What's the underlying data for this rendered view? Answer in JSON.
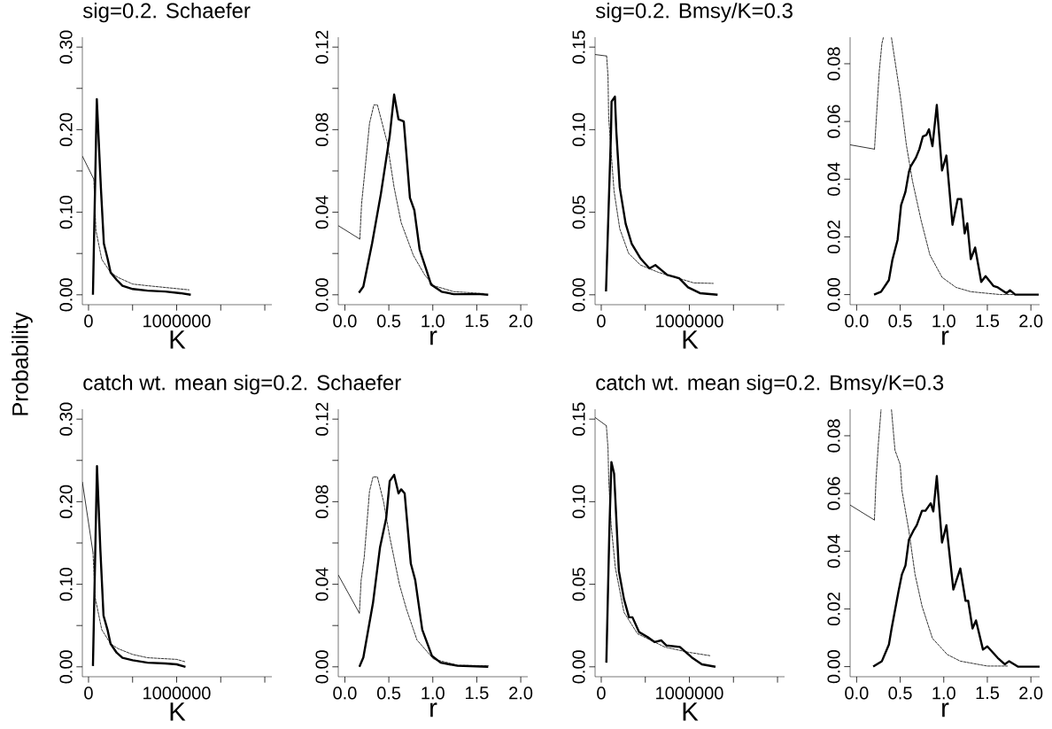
{
  "chart_data": [
    {
      "type": "line",
      "title": "sig=0.2. Schaefer",
      "xlabel": "K",
      "ylabel": "Probability",
      "xlim": [
        -70000,
        2080000
      ],
      "ylim": [
        -0.012,
        0.312
      ],
      "xticks": [
        0,
        {
          "value": 500000,
          "label": null
        },
        1000000,
        {
          "value": 1500000,
          "label": null
        },
        {
          "value": 2000000,
          "label": null
        }
      ],
      "yticks": [
        {
          "value": 0,
          "label": "0.00"
        },
        {
          "value": 0.05,
          "label": null
        },
        {
          "value": 0.1,
          "label": "0.10"
        },
        {
          "value": 0.15,
          "label": null
        },
        {
          "value": 0.2,
          "label": "0.20"
        },
        {
          "value": 0.25,
          "label": null
        },
        {
          "value": 0.3,
          "label": "0.30"
        }
      ],
      "series": [
        {
          "color": "#000000",
          "line_style": "solid",
          "x": [
            50000,
            94000,
            140000,
            174000,
            218000,
            251000,
            320000,
            385000,
            502000,
            670000,
            870000,
            1040000,
            1160000
          ],
          "values": [
            0.0,
            0.237,
            0.13,
            0.062,
            0.043,
            0.027,
            0.018,
            0.011,
            0.007,
            0.005,
            0.004,
            0.002,
            0.0
          ]
        },
        {
          "color": "#000000",
          "line_style": "dashed",
          "x": [
            60000,
            84000,
            150000,
            250000,
            335000,
            500000,
            670000,
            1140000
          ],
          "values": [
            0.14,
            0.078,
            0.043,
            0.027,
            0.021,
            0.013,
            0.011,
            0.006
          ]
        },
        {
          "color": "#000000",
          "line_style": "solid",
          "x": [
            -70000,
            60000
          ],
          "values": [
            0.168,
            0.14
          ]
        }
      ]
    },
    {
      "type": "line",
      "xlabel": "r",
      "xlim": [
        -0.075,
        2.08
      ],
      "ylim": [
        -0.0048,
        0.1248
      ],
      "xticks": [
        {
          "value": 0,
          "label": "0.0"
        },
        {
          "value": 0.5,
          "label": "0.5"
        },
        {
          "value": 1,
          "label": "1.0"
        },
        {
          "value": 1.5,
          "label": "1.5"
        },
        {
          "value": 2,
          "label": "2.0"
        }
      ],
      "yticks": [
        {
          "value": 0,
          "label": "0.00"
        },
        {
          "value": 0.02,
          "label": null
        },
        {
          "value": 0.04,
          "label": "0.04"
        },
        {
          "value": 0.06,
          "label": null
        },
        {
          "value": 0.08,
          "label": "0.08"
        },
        {
          "value": 0.1,
          "label": null
        },
        {
          "value": 0.12,
          "label": "0.12"
        }
      ],
      "series": [
        {
          "color": "#000000",
          "line_style": "solid",
          "x": [
            0.16,
            0.21,
            0.31,
            0.41,
            0.51,
            0.56,
            0.61,
            0.67,
            0.74,
            0.79,
            0.85,
            0.92,
            0.98,
            1.1,
            1.24,
            1.54,
            1.63
          ],
          "values": [
            0.001,
            0.004,
            0.025,
            0.049,
            0.077,
            0.097,
            0.085,
            0.084,
            0.047,
            0.041,
            0.022,
            0.013,
            0.005,
            0.0015,
            0.0003,
            0.0003,
            0.0
          ]
        },
        {
          "color": "#000000",
          "line_style": "dashed",
          "x": [
            0.17,
            0.19,
            0.23,
            0.28,
            0.33,
            0.37,
            0.48,
            0.56,
            0.64,
            0.78,
            0.91,
            1.01,
            1.24,
            1.58
          ],
          "values": [
            0.027,
            0.044,
            0.061,
            0.083,
            0.092,
            0.092,
            0.074,
            0.052,
            0.035,
            0.019,
            0.0095,
            0.0044,
            0.0015,
            0.0006
          ]
        },
        {
          "color": "#000000",
          "line_style": "solid",
          "x": [
            -0.075,
            0.17
          ],
          "values": [
            0.0335,
            0.027
          ]
        }
      ]
    },
    {
      "type": "line",
      "title": "sig=0.2. Bmsy/K=0.3",
      "xlabel": "K",
      "xlim": [
        -70000,
        2080000
      ],
      "ylim": [
        -0.006,
        0.156
      ],
      "xticks": [
        0,
        {
          "value": 500000,
          "label": null
        },
        1000000,
        {
          "value": 1500000,
          "label": null
        },
        {
          "value": 2000000,
          "label": null
        }
      ],
      "yticks": [
        {
          "value": 0,
          "label": "0.00"
        },
        {
          "value": 0.05,
          "label": "0.05"
        },
        {
          "value": 0.1,
          "label": "0.10"
        },
        {
          "value": 0.15,
          "label": "0.15"
        }
      ],
      "series": [
        {
          "color": "#000000",
          "line_style": "solid",
          "x": [
            54000,
            111000,
            117000,
            155000,
            171000,
            210000,
            277000,
            345000,
            446000,
            547000,
            614000,
            682000,
            749000,
            884000,
            985000,
            1120000,
            1320000
          ],
          "values": [
            0.002,
            0.099,
            0.117,
            0.12,
            0.099,
            0.065,
            0.043,
            0.031,
            0.022,
            0.016,
            0.018,
            0.015,
            0.012,
            0.01,
            0.0045,
            0.001,
            0.0
          ]
        },
        {
          "color": "#000000",
          "line_style": "dashed",
          "x": [
            61000,
            77000,
            84000,
            111000,
            145000,
            210000,
            311000,
            446000,
            648000,
            884000,
            1050000,
            1270000
          ],
          "values": [
            0.1446,
            0.132,
            0.108,
            0.087,
            0.063,
            0.04,
            0.025,
            0.018,
            0.0136,
            0.0099,
            0.0072,
            0.0069
          ]
        },
        {
          "color": "#000000",
          "line_style": "solid",
          "x": [
            -70000,
            61000
          ],
          "values": [
            0.1455,
            0.1446
          ]
        }
      ]
    },
    {
      "type": "line",
      "xlabel": "r",
      "xlim": [
        -0.075,
        2.1
      ],
      "ylim": [
        -0.0035,
        0.0892
      ],
      "xticks": [
        {
          "value": 0,
          "label": "0.0"
        },
        {
          "value": 0.5,
          "label": "0.5"
        },
        {
          "value": 1,
          "label": "1.0"
        },
        {
          "value": 1.5,
          "label": "1.5"
        },
        {
          "value": 2,
          "label": "2.0"
        }
      ],
      "yticks": [
        {
          "value": 0,
          "label": "0.00"
        },
        {
          "value": 0.02,
          "label": "0.02"
        },
        {
          "value": 0.04,
          "label": "0.04"
        },
        {
          "value": 0.06,
          "label": "0.06"
        },
        {
          "value": 0.08,
          "label": "0.08"
        }
      ],
      "series": [
        {
          "color": "#000000",
          "line_style": "solid",
          "x": [
            0.2,
            0.28,
            0.37,
            0.41,
            0.47,
            0.51,
            0.56,
            0.6,
            0.62,
            0.68,
            0.72,
            0.76,
            0.8,
            0.83,
            0.87,
            0.92,
            0.98,
            1.03,
            1.1,
            1.16,
            1.2,
            1.24,
            1.27,
            1.31,
            1.36,
            1.43,
            1.48,
            1.57,
            1.62,
            1.72,
            1.76,
            1.82,
            2.09
          ],
          "values": [
            0.0,
            0.001,
            0.005,
            0.012,
            0.019,
            0.031,
            0.0356,
            0.0425,
            0.0444,
            0.0474,
            0.0504,
            0.0548,
            0.0553,
            0.0573,
            0.0514,
            0.0657,
            0.043,
            0.0482,
            0.0242,
            0.0331,
            0.0331,
            0.0212,
            0.0247,
            0.0123,
            0.0163,
            0.0044,
            0.0064,
            0.003,
            0.0025,
            0.0005,
            0.0015,
            0.0,
            0.0
          ]
        },
        {
          "color": "#000000",
          "line_style": "dashed",
          "x": [
            0.205,
            0.23,
            0.26,
            0.29,
            0.306,
            0.35,
            0.4,
            0.5,
            0.57,
            0.64,
            0.74,
            0.84,
            0.98,
            1.14,
            1.31,
            1.65,
            2.09
          ],
          "values": [
            0.0504,
            0.063,
            0.0775,
            0.087,
            0.089,
            null,
            0.089,
            0.069,
            0.052,
            0.0395,
            0.0257,
            0.0138,
            0.006,
            0.0025,
            0.001,
            0.0,
            0.0
          ]
        },
        {
          "color": "#000000",
          "line_style": "solid",
          "x": [
            -0.075,
            0.205
          ],
          "values": [
            0.0519,
            0.0504
          ]
        }
      ]
    },
    {
      "type": "line",
      "title": "catch wt. mean sig=0.2. Schaefer",
      "xlabel": "K",
      "xlim": [
        -70000,
        2080000
      ],
      "ylim": [
        -0.012,
        0.312
      ],
      "xticks": [
        0,
        {
          "value": 500000,
          "label": null
        },
        1000000,
        {
          "value": 1500000,
          "label": null
        },
        {
          "value": 2000000,
          "label": null
        }
      ],
      "yticks": [
        {
          "value": 0,
          "label": "0.00"
        },
        {
          "value": 0.05,
          "label": null
        },
        {
          "value": 0.1,
          "label": "0.10"
        },
        {
          "value": 0.15,
          "label": null
        },
        {
          "value": 0.2,
          "label": "0.20"
        },
        {
          "value": 0.25,
          "label": null
        },
        {
          "value": 0.3,
          "label": "0.30"
        }
      ],
      "series": [
        {
          "color": "#000000",
          "line_style": "solid",
          "x": [
            50000,
            96000,
            135000,
            170000,
            215000,
            250000,
            320000,
            385000,
            500000,
            670000,
            870000,
            1000000,
            1100000
          ],
          "values": [
            0.001,
            0.243,
            0.14,
            0.062,
            0.045,
            0.028,
            0.017,
            0.011,
            0.008,
            0.005,
            0.004,
            0.003,
            0.0
          ]
        },
        {
          "color": "#000000",
          "line_style": "dashed",
          "x": [
            50000,
            75000,
            150000,
            250000,
            335000,
            500000,
            670000,
            1000000,
            1100000
          ],
          "values": [
            0.139,
            0.084,
            0.045,
            0.028,
            0.022,
            0.015,
            0.011,
            0.009,
            0.006
          ]
        },
        {
          "color": "#000000",
          "line_style": "solid",
          "x": [
            -70000,
            50000
          ],
          "values": [
            0.224,
            0.139
          ]
        }
      ]
    },
    {
      "type": "line",
      "xlabel": "r",
      "xlim": [
        -0.075,
        2.08
      ],
      "ylim": [
        -0.0048,
        0.1248
      ],
      "xticks": [
        {
          "value": 0,
          "label": "0.0"
        },
        {
          "value": 0.5,
          "label": "0.5"
        },
        {
          "value": 1,
          "label": "1.0"
        },
        {
          "value": 1.5,
          "label": "1.5"
        },
        {
          "value": 2,
          "label": "2.0"
        }
      ],
      "yticks": [
        {
          "value": 0,
          "label": "0.00"
        },
        {
          "value": 0.02,
          "label": null
        },
        {
          "value": 0.04,
          "label": "0.04"
        },
        {
          "value": 0.06,
          "label": null
        },
        {
          "value": 0.08,
          "label": "0.08"
        },
        {
          "value": 0.1,
          "label": null
        },
        {
          "value": 0.12,
          "label": "0.12"
        }
      ],
      "series": [
        {
          "color": "#000000",
          "line_style": "solid",
          "x": [
            0.165,
            0.21,
            0.32,
            0.4,
            0.47,
            0.51,
            0.56,
            0.61,
            0.64,
            0.68,
            0.75,
            0.8,
            0.88,
            0.99,
            1.09,
            1.28,
            1.63
          ],
          "values": [
            0.0,
            0.0045,
            0.031,
            0.058,
            0.072,
            0.09,
            0.093,
            0.084,
            0.086,
            0.084,
            0.05,
            0.042,
            0.018,
            0.0053,
            0.002,
            0.0005,
            0.0
          ]
        },
        {
          "color": "#000000",
          "line_style": "dashed",
          "x": [
            0.165,
            0.185,
            0.22,
            0.28,
            0.32,
            0.37,
            0.44,
            0.51,
            0.62,
            0.7,
            0.82,
            1.01,
            1.28,
            1.63
          ],
          "values": [
            0.026,
            0.042,
            0.053,
            0.085,
            0.092,
            0.092,
            0.08,
            0.063,
            0.04,
            0.028,
            0.013,
            0.0037,
            0.0008,
            0.0005
          ]
        },
        {
          "color": "#000000",
          "line_style": "solid",
          "x": [
            -0.075,
            0.165
          ],
          "values": [
            0.0445,
            0.026
          ]
        }
      ]
    },
    {
      "type": "line",
      "title": "catch wt. mean sig=0.2. Bmsy/K=0.3",
      "xlabel": "K",
      "xlim": [
        -70000,
        2080000
      ],
      "ylim": [
        -0.006,
        0.156
      ],
      "xticks": [
        0,
        {
          "value": 500000,
          "label": null
        },
        1000000,
        {
          "value": 1500000,
          "label": null
        },
        {
          "value": 2000000,
          "label": null
        }
      ],
      "yticks": [
        {
          "value": 0,
          "label": "0.00"
        },
        {
          "value": 0.05,
          "label": "0.05"
        },
        {
          "value": 0.1,
          "label": "0.10"
        },
        {
          "value": 0.15,
          "label": "0.15"
        }
      ],
      "series": [
        {
          "color": "#000000",
          "line_style": "solid",
          "x": [
            58000,
            92000,
            115000,
            146000,
            200000,
            258000,
            315000,
            354000,
            430000,
            527000,
            604000,
            680000,
            738000,
            892000,
            1027000,
            1142000,
            1296000
          ],
          "values": [
            0.0025,
            0.082,
            0.124,
            0.117,
            0.058,
            0.041,
            0.03,
            0.03,
            0.021,
            0.018,
            0.015,
            0.016,
            0.013,
            0.012,
            0.0057,
            0.0015,
            0.0
          ]
        },
        {
          "color": "#000000",
          "line_style": "dashed",
          "x": [
            58000,
            77000,
            85000,
            112000,
            160000,
            258000,
            412000,
            720000,
            990000,
            1240000
          ],
          "values": [
            0.146,
            0.132,
            0.113,
            0.086,
            0.06,
            0.033,
            0.02,
            0.012,
            0.0088,
            0.0067
          ]
        },
        {
          "color": "#000000",
          "line_style": "solid",
          "x": [
            -70000,
            58000
          ],
          "values": [
            0.151,
            0.146
          ]
        }
      ]
    },
    {
      "type": "line",
      "xlabel": "r",
      "xlim": [
        -0.075,
        2.1
      ],
      "ylim": [
        -0.0035,
        0.0892
      ],
      "xticks": [
        {
          "value": 0,
          "label": "0.0"
        },
        {
          "value": 0.5,
          "label": "0.5"
        },
        {
          "value": 1,
          "label": "1.0"
        },
        {
          "value": 1.5,
          "label": "1.5"
        },
        {
          "value": 2,
          "label": "2.0"
        }
      ],
      "yticks": [
        {
          "value": 0,
          "label": "0.00"
        },
        {
          "value": 0.02,
          "label": "0.02"
        },
        {
          "value": 0.04,
          "label": "0.04"
        },
        {
          "value": 0.06,
          "label": "0.06"
        },
        {
          "value": 0.08,
          "label": "0.08"
        }
      ],
      "series": [
        {
          "color": "#000000",
          "line_style": "solid",
          "x": [
            0.19,
            0.29,
            0.37,
            0.4,
            0.48,
            0.52,
            0.56,
            0.6,
            0.65,
            0.69,
            0.75,
            0.79,
            0.85,
            0.88,
            0.92,
            0.98,
            1.03,
            1.11,
            1.19,
            1.25,
            1.28,
            1.33,
            1.37,
            1.45,
            1.5,
            1.62,
            1.7,
            1.75,
            1.85,
            2.1
          ],
          "values": [
            0.0,
            0.0019,
            0.0076,
            0.013,
            0.026,
            0.032,
            0.035,
            0.044,
            0.047,
            0.049,
            0.054,
            0.054,
            0.0566,
            0.0538,
            0.066,
            0.043,
            0.049,
            0.0267,
            0.034,
            0.0228,
            0.0228,
            0.0132,
            0.016,
            0.0059,
            0.007,
            0.003,
            0.0008,
            0.0019,
            0.0,
            0.0
          ]
        },
        {
          "color": "#000000",
          "line_style": "dashed",
          "x": [
            0.204,
            0.223,
            0.25,
            0.28,
            0.34,
            0.4,
            0.44,
            0.5,
            0.52,
            0.6,
            0.67,
            0.75,
            0.87,
            1.04,
            1.19,
            1.5,
            1.73
          ],
          "values": [
            0.0508,
            0.065,
            0.0775,
            0.089,
            null,
            0.089,
            0.075,
            0.07,
            0.061,
            0.047,
            0.032,
            0.021,
            0.0098,
            0.0042,
            0.0019,
            0.0002,
            0.0002
          ]
        },
        {
          "color": "#000000",
          "line_style": "solid",
          "x": [
            -0.075,
            0.204
          ],
          "values": [
            0.056,
            0.0508
          ]
        }
      ]
    }
  ]
}
